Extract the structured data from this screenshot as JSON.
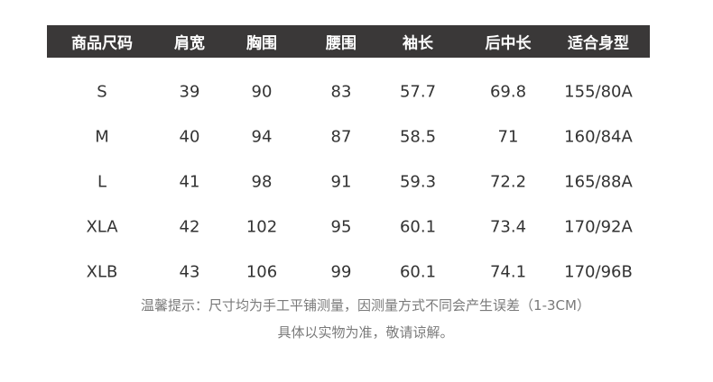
{
  "table": {
    "headers": [
      "商品尺码",
      "肩宽",
      "胸围",
      "腰围",
      "袖长",
      "后中长",
      "适合身型"
    ],
    "rows": [
      [
        "S",
        "39",
        "90",
        "83",
        "57.7",
        "69.8",
        "155/80A"
      ],
      [
        "M",
        "40",
        "94",
        "87",
        "58.5",
        "71",
        "160/84A"
      ],
      [
        "L",
        "41",
        "98",
        "91",
        "59.3",
        "72.2",
        "165/88A"
      ],
      [
        "XLA",
        "42",
        "102",
        "95",
        "60.1",
        "73.4",
        "170/92A"
      ],
      [
        "XLB",
        "43",
        "106",
        "99",
        "60.1",
        "74.1",
        "170/96B"
      ]
    ]
  },
  "notes": {
    "line1": "温馨提示：尺寸均为手工平铺测量，因测量方式不同会产生误差（1-3CM）",
    "line2": "具体以实物为准，敬请谅解。"
  },
  "colors": {
    "header_bg": "#3a3838",
    "header_text": "#ffffff",
    "body_text": "#333333",
    "note_text": "#7a7a7a"
  }
}
